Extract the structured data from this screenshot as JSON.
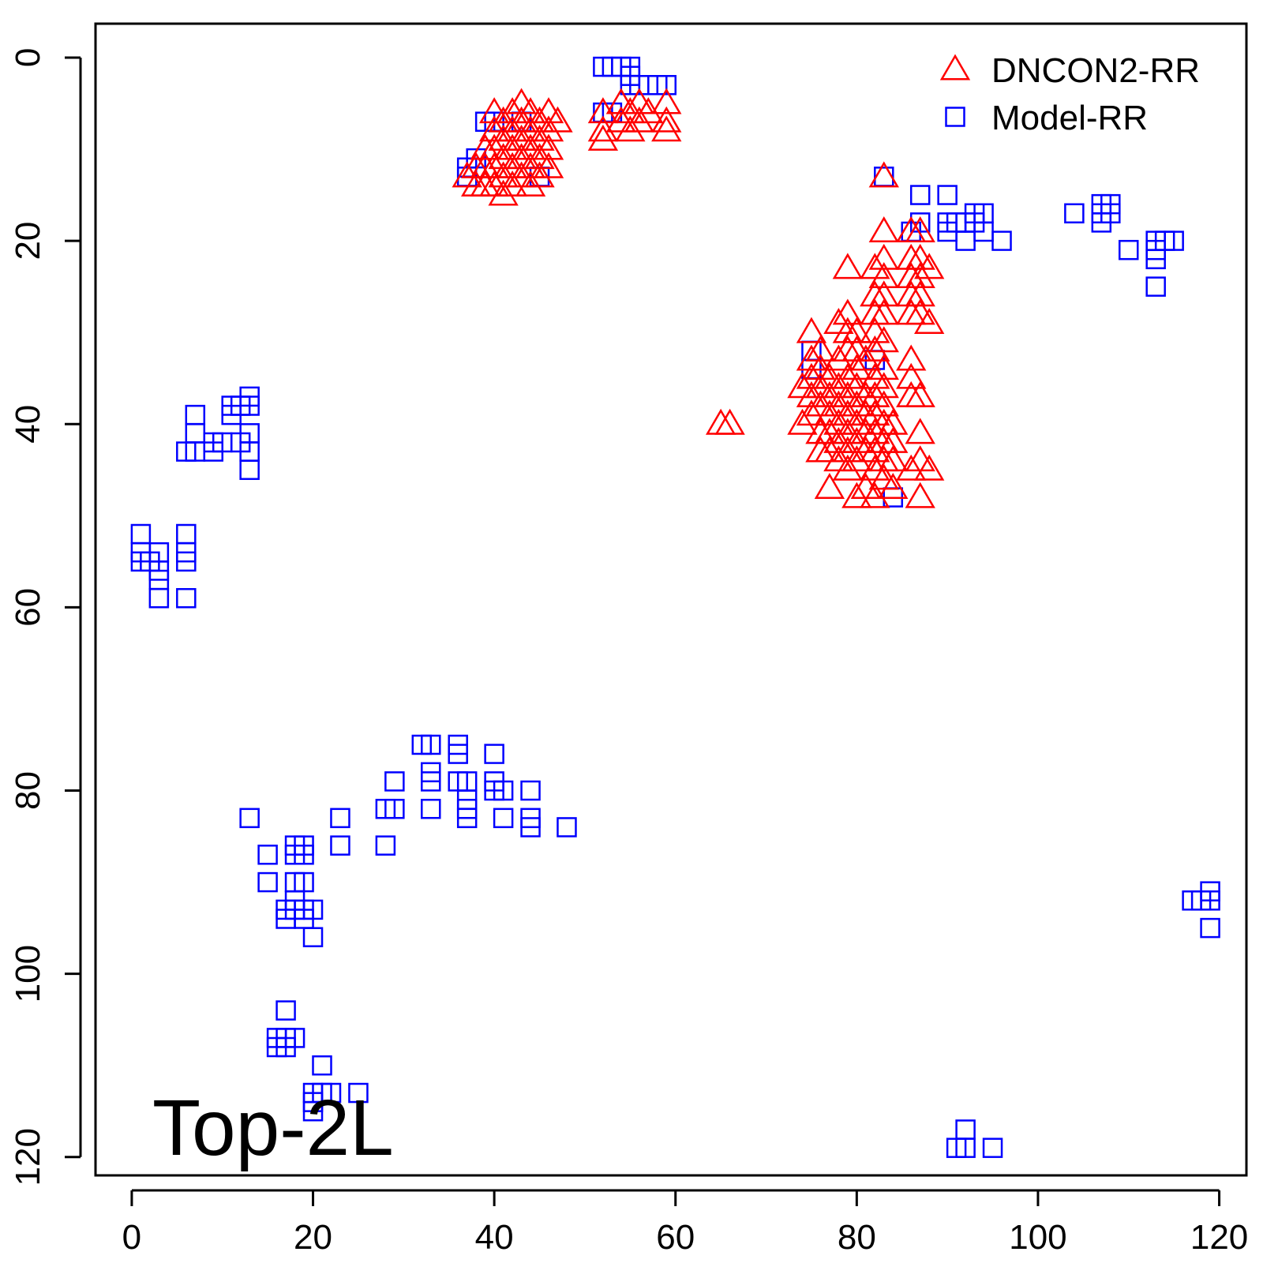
{
  "chart_data": {
    "type": "scatter",
    "title": "",
    "xlabel": "",
    "ylabel": "",
    "xlim": [
      -4,
      123
    ],
    "ylim": [
      -3.7,
      122
    ],
    "y_reversed": true,
    "grid": false,
    "legend_placement": "top-right",
    "annotation": "Top-2L",
    "x_ticks": [
      0,
      20,
      40,
      60,
      80,
      100,
      120
    ],
    "x_tick_labels": [
      "0",
      "20",
      "40",
      "60",
      "80",
      "100",
      "120"
    ],
    "y_ticks": [
      0,
      20,
      40,
      60,
      80,
      100,
      120
    ],
    "y_tick_labels": [
      "0",
      "20",
      "40",
      "60",
      "80",
      "100",
      "120"
    ],
    "series": [
      {
        "name": "DNCON2-RR",
        "marker": "triangle",
        "color": "#ff0000",
        "points": [
          [
            37,
            13
          ],
          [
            38,
            12
          ],
          [
            38,
            14
          ],
          [
            39,
            10
          ],
          [
            39,
            12
          ],
          [
            39,
            14
          ],
          [
            40,
            6
          ],
          [
            40,
            8
          ],
          [
            40,
            10
          ],
          [
            40,
            12
          ],
          [
            40,
            14
          ],
          [
            41,
            7
          ],
          [
            41,
            9
          ],
          [
            41,
            11
          ],
          [
            41,
            13
          ],
          [
            41,
            15
          ],
          [
            42,
            6
          ],
          [
            42,
            8
          ],
          [
            42,
            10
          ],
          [
            42,
            12
          ],
          [
            42,
            14
          ],
          [
            43,
            5
          ],
          [
            43,
            7
          ],
          [
            43,
            9
          ],
          [
            43,
            11
          ],
          [
            43,
            13
          ],
          [
            44,
            6
          ],
          [
            44,
            8
          ],
          [
            44,
            10
          ],
          [
            44,
            12
          ],
          [
            44,
            14
          ],
          [
            45,
            7
          ],
          [
            45,
            9
          ],
          [
            45,
            11
          ],
          [
            45,
            13
          ],
          [
            46,
            6
          ],
          [
            46,
            8
          ],
          [
            46,
            10
          ],
          [
            46,
            12
          ],
          [
            47,
            7
          ],
          [
            52,
            6
          ],
          [
            52,
            8
          ],
          [
            52,
            9
          ],
          [
            54,
            5
          ],
          [
            54,
            7
          ],
          [
            55,
            6
          ],
          [
            55,
            8
          ],
          [
            56,
            5
          ],
          [
            56,
            7
          ],
          [
            57,
            6
          ],
          [
            59,
            5
          ],
          [
            59,
            7
          ],
          [
            59,
            8
          ],
          [
            65,
            40
          ],
          [
            66,
            40
          ],
          [
            74,
            36
          ],
          [
            74,
            40
          ],
          [
            75,
            30
          ],
          [
            75,
            33
          ],
          [
            75,
            35
          ],
          [
            75,
            37
          ],
          [
            75,
            39
          ],
          [
            76,
            32
          ],
          [
            76,
            34
          ],
          [
            76,
            36
          ],
          [
            76,
            38
          ],
          [
            76,
            41
          ],
          [
            76,
            43
          ],
          [
            77,
            35
          ],
          [
            77,
            37
          ],
          [
            77,
            39
          ],
          [
            77,
            41
          ],
          [
            77,
            43
          ],
          [
            77,
            47
          ],
          [
            78,
            29
          ],
          [
            78,
            33
          ],
          [
            78,
            36
          ],
          [
            78,
            38
          ],
          [
            78,
            40
          ],
          [
            78,
            42
          ],
          [
            78,
            44
          ],
          [
            79,
            23
          ],
          [
            79,
            28
          ],
          [
            79,
            30
          ],
          [
            79,
            32
          ],
          [
            79,
            35
          ],
          [
            79,
            37
          ],
          [
            79,
            39
          ],
          [
            79,
            41
          ],
          [
            79,
            43
          ],
          [
            79,
            45
          ],
          [
            80,
            30
          ],
          [
            80,
            32
          ],
          [
            80,
            34
          ],
          [
            80,
            36
          ],
          [
            80,
            38
          ],
          [
            80,
            40
          ],
          [
            80,
            42
          ],
          [
            80,
            44
          ],
          [
            80,
            48
          ],
          [
            81,
            33
          ],
          [
            81,
            37
          ],
          [
            81,
            39
          ],
          [
            81,
            41
          ],
          [
            81,
            43
          ],
          [
            81,
            47
          ],
          [
            82,
            23
          ],
          [
            82,
            26
          ],
          [
            82,
            28
          ],
          [
            82,
            30
          ],
          [
            82,
            32
          ],
          [
            82,
            35
          ],
          [
            82,
            37
          ],
          [
            82,
            39
          ],
          [
            82,
            41
          ],
          [
            82,
            43
          ],
          [
            82,
            45
          ],
          [
            82,
            48
          ],
          [
            83,
            13
          ],
          [
            83,
            19
          ],
          [
            83,
            22
          ],
          [
            83,
            24
          ],
          [
            83,
            26
          ],
          [
            83,
            28
          ],
          [
            83,
            31
          ],
          [
            83,
            34
          ],
          [
            83,
            36
          ],
          [
            83,
            38
          ],
          [
            83,
            40
          ],
          [
            83,
            42
          ],
          [
            83,
            44
          ],
          [
            83,
            46
          ],
          [
            84,
            40
          ],
          [
            84,
            42
          ],
          [
            84,
            44
          ],
          [
            84,
            47
          ],
          [
            86,
            19
          ],
          [
            86,
            22
          ],
          [
            86,
            24
          ],
          [
            86,
            26
          ],
          [
            86,
            28
          ],
          [
            86,
            33
          ],
          [
            86,
            35
          ],
          [
            86,
            37
          ],
          [
            86,
            45
          ],
          [
            87,
            19
          ],
          [
            87,
            22
          ],
          [
            87,
            24
          ],
          [
            87,
            26
          ],
          [
            87,
            28
          ],
          [
            87,
            37
          ],
          [
            87,
            41
          ],
          [
            87,
            44
          ],
          [
            87,
            48
          ],
          [
            88,
            23
          ],
          [
            88,
            29
          ],
          [
            88,
            45
          ]
        ]
      },
      {
        "name": "Model-RR",
        "marker": "square",
        "color": "#0000ff",
        "points": [
          [
            52,
            1
          ],
          [
            53,
            1
          ],
          [
            54,
            1
          ],
          [
            55,
            1
          ],
          [
            55,
            2
          ],
          [
            55,
            3
          ],
          [
            56,
            3
          ],
          [
            57,
            3
          ],
          [
            58,
            3
          ],
          [
            59,
            3
          ],
          [
            52,
            6
          ],
          [
            53,
            6
          ],
          [
            37,
            12
          ],
          [
            37,
            13
          ],
          [
            38,
            11
          ],
          [
            39,
            7
          ],
          [
            40,
            7
          ],
          [
            43,
            7
          ],
          [
            45,
            13
          ],
          [
            83,
            13
          ],
          [
            86,
            19
          ],
          [
            87,
            15
          ],
          [
            87,
            18
          ],
          [
            90,
            15
          ],
          [
            90,
            18
          ],
          [
            90,
            19
          ],
          [
            91,
            18
          ],
          [
            92,
            18
          ],
          [
            92,
            20
          ],
          [
            93,
            17
          ],
          [
            93,
            18
          ],
          [
            94,
            17
          ],
          [
            94,
            19
          ],
          [
            96,
            20
          ],
          [
            104,
            17
          ],
          [
            107,
            16
          ],
          [
            107,
            17
          ],
          [
            107,
            18
          ],
          [
            108,
            16
          ],
          [
            108,
            17
          ],
          [
            110,
            21
          ],
          [
            113,
            20
          ],
          [
            113,
            21
          ],
          [
            113,
            22
          ],
          [
            113,
            25
          ],
          [
            114,
            20
          ],
          [
            115,
            20
          ],
          [
            75,
            32
          ],
          [
            75,
            34
          ],
          [
            82,
            33
          ],
          [
            84,
            48
          ],
          [
            7,
            39
          ],
          [
            7,
            41
          ],
          [
            6,
            43
          ],
          [
            7,
            43
          ],
          [
            9,
            42
          ],
          [
            9,
            43
          ],
          [
            10,
            42
          ],
          [
            11,
            38
          ],
          [
            11,
            39
          ],
          [
            12,
            38
          ],
          [
            12,
            42
          ],
          [
            13,
            37
          ],
          [
            13,
            38
          ],
          [
            13,
            41
          ],
          [
            13,
            43
          ],
          [
            13,
            45
          ],
          [
            1,
            52
          ],
          [
            1,
            54
          ],
          [
            1,
            55
          ],
          [
            2,
            55
          ],
          [
            3,
            54
          ],
          [
            3,
            56
          ],
          [
            3,
            57
          ],
          [
            3,
            59
          ],
          [
            6,
            52
          ],
          [
            6,
            54
          ],
          [
            6,
            55
          ],
          [
            6,
            59
          ],
          [
            32,
            75
          ],
          [
            33,
            75
          ],
          [
            33,
            78
          ],
          [
            33,
            79
          ],
          [
            33,
            82
          ],
          [
            36,
            75
          ],
          [
            36,
            76
          ],
          [
            36,
            79
          ],
          [
            37,
            79
          ],
          [
            37,
            81
          ],
          [
            37,
            82
          ],
          [
            37,
            83
          ],
          [
            40,
            76
          ],
          [
            40,
            79
          ],
          [
            40,
            80
          ],
          [
            41,
            80
          ],
          [
            41,
            83
          ],
          [
            44,
            80
          ],
          [
            44,
            83
          ],
          [
            44,
            84
          ],
          [
            48,
            84
          ],
          [
            29,
            79
          ],
          [
            28,
            82
          ],
          [
            29,
            82
          ],
          [
            28,
            86
          ],
          [
            23,
            83
          ],
          [
            23,
            86
          ],
          [
            13,
            83
          ],
          [
            15,
            87
          ],
          [
            15,
            90
          ],
          [
            18,
            86
          ],
          [
            18,
            87
          ],
          [
            18,
            90
          ],
          [
            18,
            92
          ],
          [
            18,
            93
          ],
          [
            19,
            86
          ],
          [
            19,
            87
          ],
          [
            19,
            90
          ],
          [
            19,
            93
          ],
          [
            19,
            94
          ],
          [
            17,
            93
          ],
          [
            17,
            94
          ],
          [
            20,
            93
          ],
          [
            20,
            96
          ],
          [
            17,
            104
          ],
          [
            16,
            107
          ],
          [
            16,
            108
          ],
          [
            17,
            107
          ],
          [
            17,
            108
          ],
          [
            18,
            107
          ],
          [
            21,
            110
          ],
          [
            20,
            113
          ],
          [
            21,
            113
          ],
          [
            20,
            114
          ],
          [
            20,
            115
          ],
          [
            22,
            113
          ],
          [
            25,
            113
          ],
          [
            117,
            92
          ],
          [
            118,
            92
          ],
          [
            119,
            91
          ],
          [
            119,
            92
          ],
          [
            119,
            95
          ],
          [
            92,
            117
          ],
          [
            91,
            119
          ],
          [
            92,
            119
          ],
          [
            95,
            119
          ]
        ]
      }
    ]
  }
}
